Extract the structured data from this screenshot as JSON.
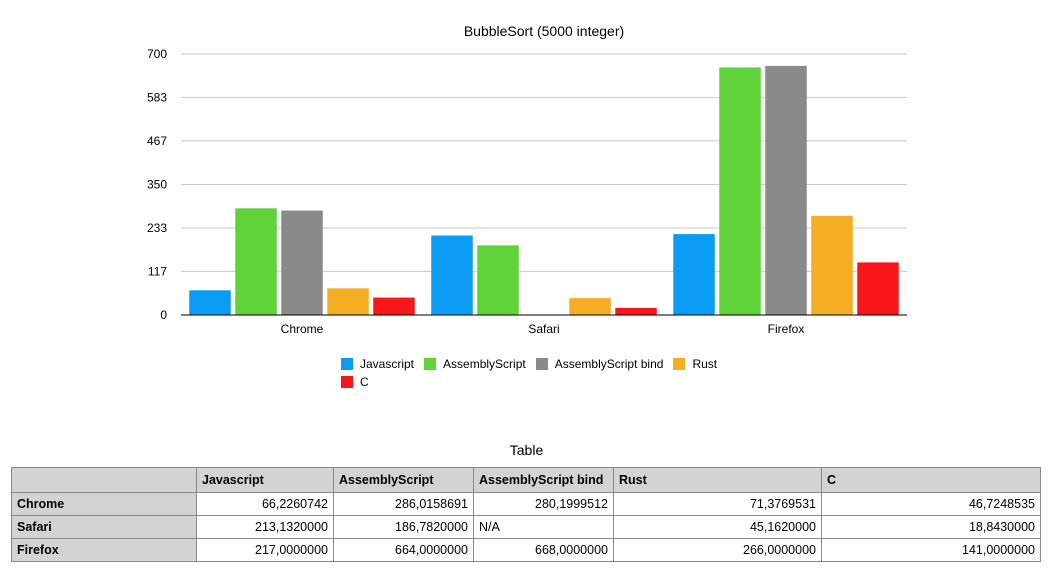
{
  "chart_data": {
    "type": "bar",
    "title": "BubbleSort (5000 integer)",
    "categories": [
      "Chrome",
      "Safari",
      "Firefox"
    ],
    "series": [
      {
        "name": "Javascript",
        "color": "#0a9bf5",
        "values": [
          66.2260742,
          213.132,
          217.0
        ]
      },
      {
        "name": "AssemblyScript",
        "color": "#5fd339",
        "values": [
          286.0158691,
          186.782,
          664.0
        ]
      },
      {
        "name": "AssemblyScript bind",
        "color": "#8a8a8a",
        "values": [
          280.1999512,
          null,
          668.0
        ]
      },
      {
        "name": "Rust",
        "color": "#f5ad23",
        "values": [
          71.3769531,
          45.162,
          266.0
        ]
      },
      {
        "name": "C",
        "color": "#f7171b",
        "values": [
          46.7248535,
          18.843,
          141.0
        ]
      }
    ],
    "yticks": [
      "0",
      "117",
      "233",
      "350",
      "467",
      "583",
      "700"
    ],
    "ylim": [
      0,
      700
    ],
    "xlabel": "",
    "ylabel": "",
    "grid": true,
    "legend_position": "bottom"
  },
  "table": {
    "title": "Table",
    "columns": [
      "",
      "Javascript",
      "AssemblyScript",
      "AssemblyScript bind",
      "Rust",
      "C"
    ],
    "rows": [
      {
        "label": "Chrome",
        "cells": [
          "66,2260742",
          "286,0158691",
          "280,1999512",
          "71,3769531",
          "46,7248535"
        ]
      },
      {
        "label": "Safari",
        "cells": [
          "213,1320000",
          "186,7820000",
          "N/A",
          "45,1620000",
          "18,8430000"
        ]
      },
      {
        "label": "Firefox",
        "cells": [
          "217,0000000",
          "664,0000000",
          "668,0000000",
          "266,0000000",
          "141,0000000"
        ]
      }
    ]
  }
}
